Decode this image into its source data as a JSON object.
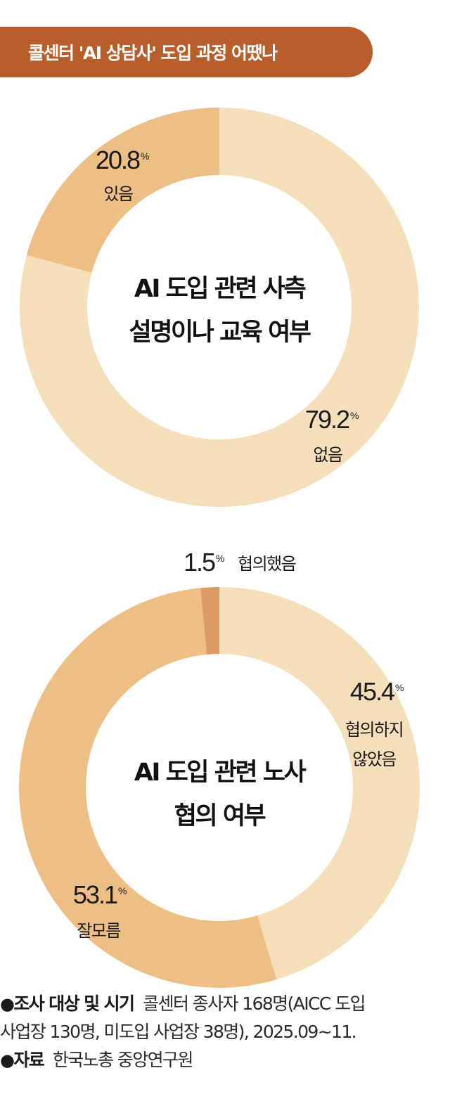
{
  "title": "콜센터 'AI 상담사' 도입 과정 어땠나",
  "colors": {
    "title_bg": "#b85e2a",
    "light": "#f5dfba",
    "medium": "#eebf84",
    "dark": "#dc9a66"
  },
  "chart_data": [
    {
      "type": "pie",
      "style": "donut",
      "title": "AI 도입 관련 사측 설명이나 교육 여부",
      "center_lines": [
        "AI 도입 관련 사측",
        "설명이나 교육 여부"
      ],
      "unit": "%",
      "slices": [
        {
          "label": "없음",
          "value": 79.2,
          "value_text": "79.2",
          "color": "#f5dfba"
        },
        {
          "label": "있음",
          "value": 20.8,
          "value_text": "20.8",
          "color": "#eebf84"
        }
      ]
    },
    {
      "type": "pie",
      "style": "donut",
      "title": "AI 도입 관련 노사 협의 여부",
      "center_lines": [
        "AI 도입 관련 노사",
        "협의 여부"
      ],
      "unit": "%",
      "slices": [
        {
          "label": "협의하지 않았음",
          "label_lines": [
            "협의하지",
            "않았음"
          ],
          "value": 45.4,
          "value_text": "45.4",
          "color": "#f5dfba"
        },
        {
          "label": "잘모름",
          "value": 53.1,
          "value_text": "53.1",
          "color": "#eebf84"
        },
        {
          "label": "협의했음",
          "value": 1.5,
          "value_text": "1.5",
          "color": "#dc9a66"
        }
      ]
    }
  ],
  "notes": {
    "bullet": "●",
    "survey_label": "조사 대상 및 시기",
    "survey_line1": "콜센터 종사자 168명(AICC 도입",
    "survey_line2": "사업장 130명, 미도입 사업장 38명), 2025.09~11.",
    "source_label": "자료",
    "source_text": "한국노총 중앙연구원"
  }
}
